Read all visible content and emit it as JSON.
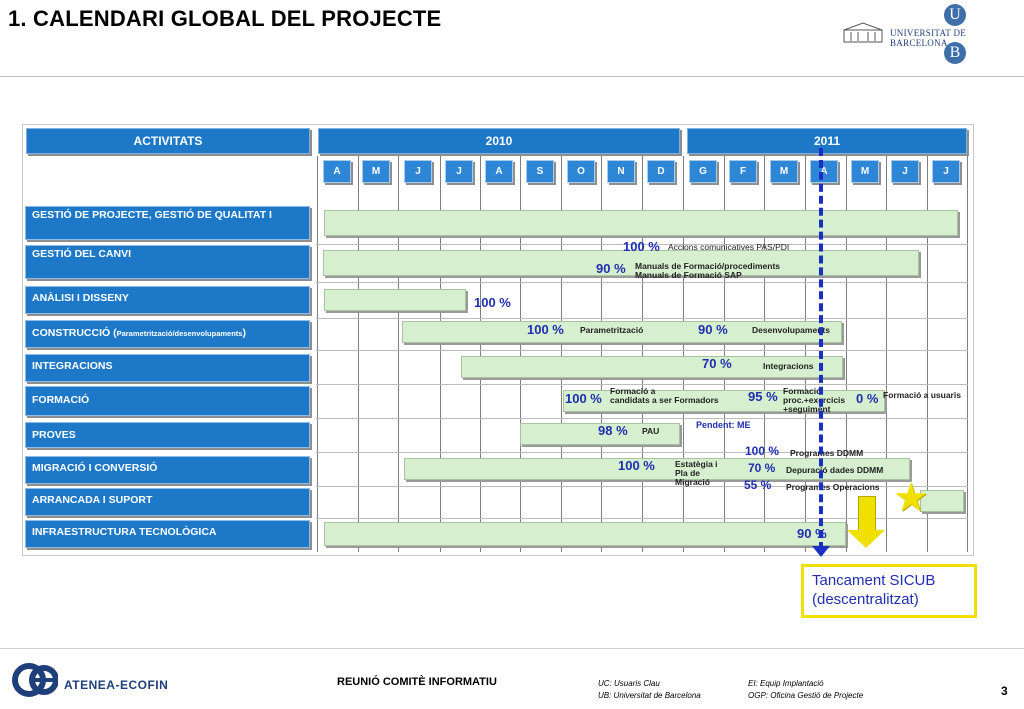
{
  "title": "1. CALENDARI GLOBAL DEL PROJECTE",
  "logo": {
    "name": "UNIVERSITAT DE BARCELONA",
    "letters": [
      "U",
      "B"
    ]
  },
  "header": {
    "activities": "ACTIVITATS",
    "year1": "2010",
    "year2": "2011"
  },
  "months_2010": [
    "A",
    "M",
    "J",
    "J",
    "A",
    "S",
    "O",
    "N",
    "D"
  ],
  "months_2011": [
    "G",
    "F",
    "M",
    "A",
    "M",
    "J",
    "J"
  ],
  "activities": [
    "GESTIÓ DE PROJECTE, GESTIÓ DE QUALITAT I",
    "GESTIÓ DEL CANVI",
    "ANÀLISI I DISSENY",
    "CONSTRUCCIÓ (",
    "INTEGRACIONS",
    "FORMACIÓ",
    "PROVES",
    "MIGRACIÓ I CONVERSIÓ",
    "ARRANCADA I SUPORT",
    "INFRAESTRUCTURA TECNOLÒGICA"
  ],
  "construction_sub": "Parametrització/desenvolupaments",
  "annotations": {
    "a1_pct": "100 %",
    "a1_lbl": "Accions comunicatives PAS/PDI",
    "a2_pct": "90 %",
    "a2_lbl1": "Manuals de Formació/procediments",
    "a2_lbl2": "Manuals de Formació SAP",
    "a3_pct": "100 %",
    "a4_pct": "100 %",
    "a4_lbl": "Parametrització",
    "a5_pct": "90 %",
    "a5_lbl": "Desenvolupaments",
    "a6_pct": "70 %",
    "a6_lbl": "Integracions",
    "a7_pct": "100 %",
    "a7_lbl1": "Formació a",
    "a7_lbl2": "candidats a ser Formadors",
    "a8_pct": "95 %",
    "a8_lbl1": "Formació",
    "a8_lbl2": "proc.+exercicis",
    "a8_lbl3": "+seguiment",
    "a9_pct": "0 %",
    "a9_lbl": "Formació a usuaris",
    "a10_pct": "98 %",
    "a10_lbl": "PAU",
    "pendent": "Pendent: ME",
    "a11_pct": "100 %",
    "a11_lbl1": "Estatègia i",
    "a11_lbl2": "Pla de",
    "a11_lbl3": "Migració",
    "a12_pct": "100 %",
    "a12_lbl": "Programes DDMM",
    "a13_pct": "70 %",
    "a13_lbl": "Depuració dades DDMM",
    "a14_pct": "55 %",
    "a14_lbl": "Programes Operacions",
    "a15_pct": "90 %"
  },
  "callout": {
    "line1": "Tancament SICUB",
    "line2": "(descentralitzat)"
  },
  "footer": {
    "brand": "ATENEA-ECOFIN",
    "meeting": "REUNIÓ COMITÈ INFORMATIU",
    "legend1": "UC: Usuaris Clau",
    "legend2": "UB: Universitat de Barcelona",
    "legend3": "EI: Equip Implantació",
    "legend4": "OGP: Oficina Gestió de Projecte",
    "page": "3"
  },
  "colors": {
    "header_blue": "#1e78c8",
    "bar_green": "#d6efcf",
    "pct_blue": "#1f2fb0",
    "highlight_yellow": "#f0e000"
  },
  "icons": [
    "ub-seal-icon",
    "star-icon",
    "down-arrow-icon",
    "ae-logo-icon"
  ]
}
